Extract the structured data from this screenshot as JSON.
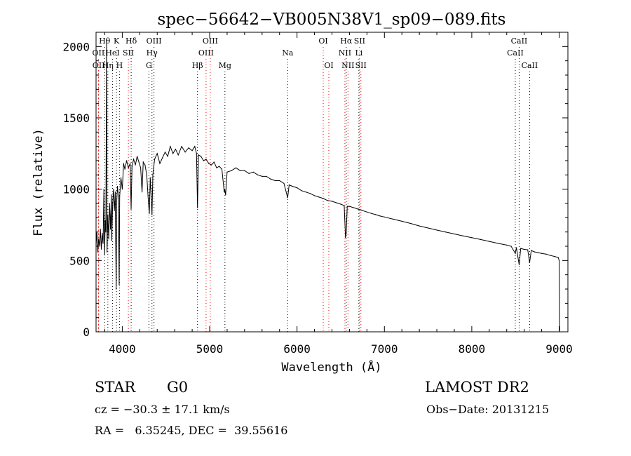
{
  "chart_data": {
    "type": "line",
    "title": "spec−56642−VB005N38V1_sp09−089.fits",
    "xlabel": "Wavelength (Å)",
    "ylabel": "Flux (relative)",
    "xlim": [
      3700,
      9100
    ],
    "ylim": [
      0,
      2100
    ],
    "xticks": [
      4000,
      5000,
      6000,
      7000,
      8000,
      9000
    ],
    "yticks": [
      0,
      500,
      1000,
      1500,
      2000
    ],
    "grid": false,
    "legend": "none",
    "series": [
      {
        "color": "#000000",
        "points": [
          [
            3700,
            610
          ],
          [
            3710,
            700
          ],
          [
            3720,
            560
          ],
          [
            3730,
            650
          ],
          [
            3740,
            600
          ],
          [
            3750,
            720
          ],
          [
            3760,
            580
          ],
          [
            3770,
            690
          ],
          [
            3780,
            620
          ],
          [
            3790,
            1000
          ],
          [
            3797,
            540
          ],
          [
            3805,
            780
          ],
          [
            3812,
            700
          ],
          [
            3820,
            2050
          ],
          [
            3826,
            560
          ],
          [
            3835,
            820
          ],
          [
            3845,
            650
          ],
          [
            3855,
            900
          ],
          [
            3865,
            720
          ],
          [
            3875,
            960
          ],
          [
            3880,
            640
          ],
          [
            3890,
            900
          ],
          [
            3900,
            1000
          ],
          [
            3910,
            850
          ],
          [
            3920,
            980
          ],
          [
            3930,
            300
          ],
          [
            3935,
            900
          ],
          [
            3945,
            1020
          ],
          [
            3955,
            950
          ],
          [
            3965,
            330
          ],
          [
            3970,
            950
          ],
          [
            3985,
            1080
          ],
          [
            4000,
            1000
          ],
          [
            4015,
            1180
          ],
          [
            4030,
            1140
          ],
          [
            4050,
            1200
          ],
          [
            4070,
            1150
          ],
          [
            4090,
            1180
          ],
          [
            4101,
            860
          ],
          [
            4112,
            1160
          ],
          [
            4130,
            1210
          ],
          [
            4150,
            1170
          ],
          [
            4170,
            1230
          ],
          [
            4190,
            1190
          ],
          [
            4210,
            1150
          ],
          [
            4226,
            980
          ],
          [
            4240,
            1190
          ],
          [
            4260,
            1170
          ],
          [
            4280,
            1100
          ],
          [
            4300,
            900
          ],
          [
            4310,
            830
          ],
          [
            4320,
            1080
          ],
          [
            4340,
            820
          ],
          [
            4350,
            1100
          ],
          [
            4370,
            1210
          ],
          [
            4400,
            1250
          ],
          [
            4430,
            1180
          ],
          [
            4460,
            1220
          ],
          [
            4490,
            1260
          ],
          [
            4520,
            1230
          ],
          [
            4550,
            1300
          ],
          [
            4580,
            1250
          ],
          [
            4610,
            1280
          ],
          [
            4640,
            1240
          ],
          [
            4680,
            1300
          ],
          [
            4720,
            1260
          ],
          [
            4760,
            1290
          ],
          [
            4800,
            1270
          ],
          [
            4830,
            1300
          ],
          [
            4850,
            1250
          ],
          [
            4861,
            870
          ],
          [
            4872,
            1240
          ],
          [
            4900,
            1230
          ],
          [
            4930,
            1200
          ],
          [
            4960,
            1210
          ],
          [
            4990,
            1180
          ],
          [
            5020,
            1170
          ],
          [
            5050,
            1190
          ],
          [
            5080,
            1150
          ],
          [
            5110,
            1160
          ],
          [
            5140,
            1140
          ],
          [
            5167,
            980
          ],
          [
            5172,
            1000
          ],
          [
            5183,
            960
          ],
          [
            5200,
            1120
          ],
          [
            5250,
            1130
          ],
          [
            5300,
            1150
          ],
          [
            5350,
            1130
          ],
          [
            5400,
            1130
          ],
          [
            5450,
            1110
          ],
          [
            5500,
            1120
          ],
          [
            5550,
            1100
          ],
          [
            5600,
            1090
          ],
          [
            5650,
            1090
          ],
          [
            5700,
            1070
          ],
          [
            5750,
            1060
          ],
          [
            5800,
            1060
          ],
          [
            5850,
            1040
          ],
          [
            5893,
            940
          ],
          [
            5910,
            1030
          ],
          [
            5950,
            1020
          ],
          [
            6000,
            1010
          ],
          [
            6050,
            990
          ],
          [
            6100,
            980
          ],
          [
            6150,
            970
          ],
          [
            6200,
            955
          ],
          [
            6250,
            945
          ],
          [
            6300,
            935
          ],
          [
            6350,
            920
          ],
          [
            6400,
            915
          ],
          [
            6450,
            905
          ],
          [
            6500,
            895
          ],
          [
            6540,
            885
          ],
          [
            6555,
            660
          ],
          [
            6563,
            690
          ],
          [
            6575,
            880
          ],
          [
            6600,
            880
          ],
          [
            6650,
            870
          ],
          [
            6700,
            860
          ],
          [
            6750,
            850
          ],
          [
            6800,
            840
          ],
          [
            6850,
            830
          ],
          [
            6900,
            822
          ],
          [
            6950,
            812
          ],
          [
            7000,
            805
          ],
          [
            7100,
            790
          ],
          [
            7200,
            775
          ],
          [
            7300,
            760
          ],
          [
            7400,
            742
          ],
          [
            7500,
            728
          ],
          [
            7600,
            713
          ],
          [
            7700,
            700
          ],
          [
            7800,
            686
          ],
          [
            7900,
            673
          ],
          [
            8000,
            660
          ],
          [
            8100,
            647
          ],
          [
            8200,
            634
          ],
          [
            8300,
            620
          ],
          [
            8400,
            608
          ],
          [
            8450,
            600
          ],
          [
            8498,
            550
          ],
          [
            8510,
            590
          ],
          [
            8542,
            470
          ],
          [
            8560,
            585
          ],
          [
            8600,
            578
          ],
          [
            8640,
            575
          ],
          [
            8662,
            485
          ],
          [
            8680,
            570
          ],
          [
            8720,
            560
          ],
          [
            8760,
            555
          ],
          [
            8800,
            550
          ],
          [
            8850,
            545
          ],
          [
            8900,
            535
          ],
          [
            8950,
            528
          ],
          [
            8990,
            520
          ],
          [
            9000,
            500
          ],
          [
            9005,
            10
          ]
        ]
      }
    ],
    "line_markers": [
      {
        "label": "Hθ",
        "wavelength": 3798,
        "row": 0,
        "color": "#000000"
      },
      {
        "label": "K",
        "wavelength": 3934,
        "row": 0,
        "color": "#000000"
      },
      {
        "label": "Hδ",
        "wavelength": 4102,
        "row": 0,
        "color": "#000000"
      },
      {
        "label": "OIII",
        "wavelength": 4363,
        "row": 0,
        "color": "#000000"
      },
      {
        "label": "OIII",
        "wavelength": 5007,
        "row": 0,
        "color": "#ff0000"
      },
      {
        "label": "OI",
        "wavelength": 6300,
        "row": 0,
        "color": "#ff0000"
      },
      {
        "label": "Hα",
        "wavelength": 6563,
        "row": 0,
        "color": "#000000"
      },
      {
        "label": "SII",
        "wavelength": 6716,
        "row": 0,
        "color": "#ff0000"
      },
      {
        "label": "CaII",
        "wavelength": 8542,
        "row": 0,
        "color": "#000000"
      },
      {
        "label": "OII",
        "wavelength": 3727,
        "row": 1,
        "color": "#ff0000"
      },
      {
        "label": "HeI",
        "wavelength": 3889,
        "row": 1,
        "color": "#000000"
      },
      {
        "label": "SII",
        "wavelength": 4070,
        "row": 1,
        "color": "#ff0000"
      },
      {
        "label": "Hγ",
        "wavelength": 4340,
        "row": 1,
        "color": "#000000"
      },
      {
        "label": "OIII",
        "wavelength": 4959,
        "row": 1,
        "color": "#ff0000"
      },
      {
        "label": "Na",
        "wavelength": 5893,
        "row": 1,
        "color": "#000000"
      },
      {
        "label": "NII",
        "wavelength": 6548,
        "row": 1,
        "color": "#ff0000"
      },
      {
        "label": "Li",
        "wavelength": 6708,
        "row": 1,
        "color": "#000000"
      },
      {
        "label": "CaII",
        "wavelength": 8498,
        "row": 1,
        "color": "#000000"
      },
      {
        "label": "OII",
        "wavelength": 3729,
        "row": 2,
        "color": "#ff0000"
      },
      {
        "label": "Hη",
        "wavelength": 3835,
        "row": 2,
        "color": "#000000"
      },
      {
        "label": "H",
        "wavelength": 3968,
        "row": 2,
        "color": "#000000"
      },
      {
        "label": "G",
        "wavelength": 4305,
        "row": 2,
        "color": "#000000"
      },
      {
        "label": "Hβ",
        "wavelength": 4861,
        "row": 2,
        "color": "#000000"
      },
      {
        "label": "Mg",
        "wavelength": 5175,
        "row": 2,
        "color": "#000000"
      },
      {
        "label": "OI",
        "wavelength": 6364,
        "row": 2,
        "color": "#ff0000"
      },
      {
        "label": "NII",
        "wavelength": 6583,
        "row": 2,
        "color": "#ff0000"
      },
      {
        "label": "SII",
        "wavelength": 6731,
        "row": 2,
        "color": "#ff0000"
      },
      {
        "label": "CaII",
        "wavelength": 8662,
        "row": 2,
        "color": "#000000"
      }
    ]
  },
  "info": {
    "class": "STAR",
    "subclass": "G0",
    "cz": "cz = −30.3 ± 17.1 km/s",
    "coords": "RA =   6.35245, DEC =  39.55616",
    "survey": "LAMOST DR2",
    "obs_date": "Obs−Date: 20131215"
  }
}
